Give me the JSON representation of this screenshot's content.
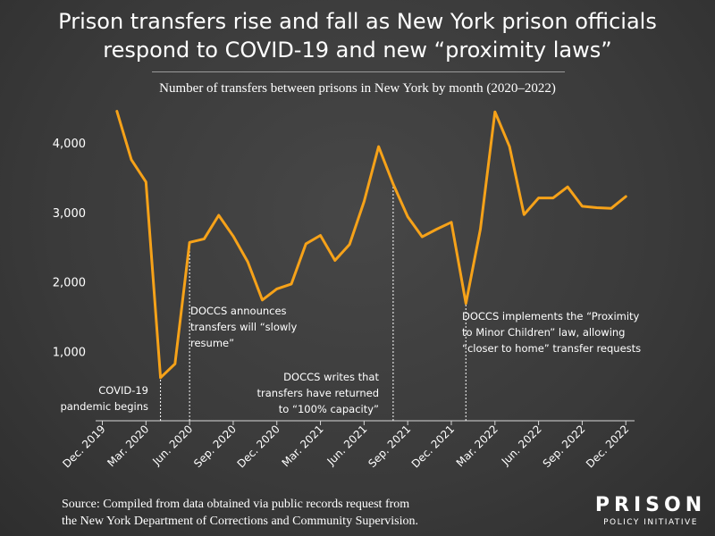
{
  "title_line1": "Prison transfers rise and fall as New York prison officials",
  "title_line2": "respond to COVID-19 and new “proximity laws”",
  "subtitle": "Number of transfers between prisons in New York by month (2020–2022)",
  "source_line1": "Source: Compiled from data obtained via public records request from",
  "source_line2": "the New York Department of Corrections and Community Supervision.",
  "logo_main": "PRISON",
  "logo_sub": "POLICY INITIATIVE",
  "colors": {
    "line": "#f6a219",
    "background": "#3c3c3c",
    "text": "#ffffff"
  },
  "chart_data": {
    "type": "line",
    "title": "Number of transfers between prisons in New York by month (2020–2022)",
    "xlabel": "",
    "ylabel": "",
    "ylim": [
      0,
      4700
    ],
    "yticks": [
      1000,
      2000,
      3000,
      4000
    ],
    "ytick_labels": [
      "1,000",
      "2,000",
      "3,000",
      "4,000"
    ],
    "xtick_labels": [
      {
        "label": "Dec. 2019",
        "index": 0
      },
      {
        "label": "Mar. 2020",
        "index": 3
      },
      {
        "label": "Jun. 2020",
        "index": 6
      },
      {
        "label": "Sep. 2020",
        "index": 9
      },
      {
        "label": "Dec. 2020",
        "index": 12
      },
      {
        "label": "Mar. 2021",
        "index": 15
      },
      {
        "label": "Jun. 2021",
        "index": 18
      },
      {
        "label": "Sep. 2021",
        "index": 21
      },
      {
        "label": "Dec. 2021",
        "index": 24
      },
      {
        "label": "Mar. 2022",
        "index": 27
      },
      {
        "label": "Jun. 2022",
        "index": 30
      },
      {
        "label": "Sep. 2022",
        "index": 33
      },
      {
        "label": "Dec. 2022",
        "index": 36
      }
    ],
    "series": [
      {
        "name": "Transfers",
        "start_label": "Jan. 2020",
        "start_index": 1,
        "values": [
          4460,
          3760,
          3440,
          620,
          820,
          2570,
          2620,
          2960,
          2660,
          2290,
          1740,
          1900,
          1970,
          2550,
          2670,
          2310,
          2540,
          3160,
          3950,
          3410,
          2940,
          2650,
          2760,
          2860,
          1690,
          2760,
          4450,
          3950,
          2970,
          3210,
          3210,
          3370,
          3090,
          3070,
          3060,
          3230
        ]
      }
    ],
    "grid": false,
    "annotations": [
      {
        "lines": [
          "COVID-19",
          "pandemic begins"
        ],
        "index": 4,
        "value": 620,
        "align": "end"
      },
      {
        "lines": [
          "DOCCS announces",
          "transfers will “slowly",
          "resume”"
        ],
        "index": 6,
        "value": 2570,
        "align": "start"
      },
      {
        "lines": [
          "DOCCS writes that",
          "transfers have returned",
          "to “100% capacity”"
        ],
        "index": 20,
        "value": 3410,
        "align": "end"
      },
      {
        "lines": [
          "DOCCS implements the “Proximity",
          "to Minor Children” law, allowing",
          "“closer to home” transfer requests"
        ],
        "index": 25,
        "value": 1690,
        "align": "start"
      }
    ]
  }
}
